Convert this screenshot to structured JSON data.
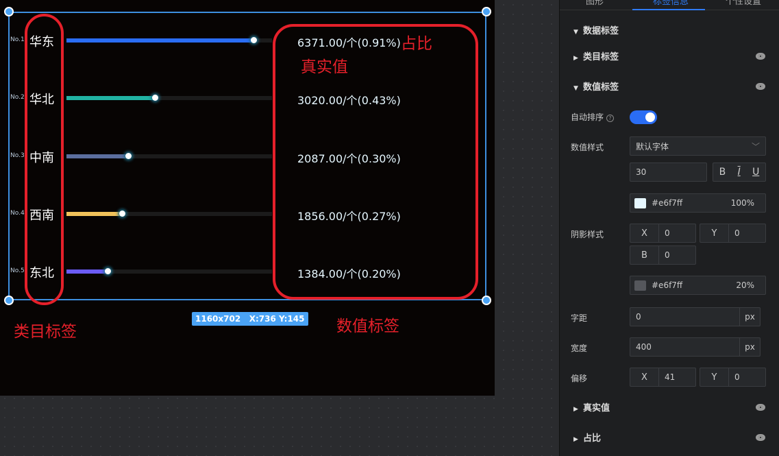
{
  "chart": {
    "rows": [
      {
        "rank": "No.1",
        "category": "华东",
        "value": "6371.00/个(0.91%)",
        "percent": 0.91,
        "color": "#2a6df4"
      },
      {
        "rank": "No.2",
        "category": "华北",
        "value": "3020.00/个(0.43%)",
        "percent": 0.43,
        "color": "#21b3a3"
      },
      {
        "rank": "No.3",
        "category": "中南",
        "value": "2087.00/个(0.30%)",
        "percent": 0.3,
        "color": "#5b6e9e"
      },
      {
        "rank": "No.4",
        "category": "西南",
        "value": "1856.00/个(0.27%)",
        "percent": 0.27,
        "color": "#f1c25a"
      },
      {
        "rank": "No.5",
        "category": "东北",
        "value": "1384.00/个(0.20%)",
        "percent": 0.2,
        "color": "#6b5cf5"
      }
    ]
  },
  "annotations": {
    "ratio": "占比",
    "real_value": "真实值",
    "category_label": "类目标签",
    "value_label": "数值标签"
  },
  "badge": "1160x702   X:736 Y:145",
  "panel": {
    "tabs": [
      "图形",
      "标签信息",
      "个性设置"
    ],
    "sections": {
      "data_label": "数据标签",
      "category_label": "类目标签",
      "value_label": "数值标签",
      "real_value": "真实值",
      "ratio": "占比"
    },
    "auto_sort": {
      "label": "自动排序",
      "on": true
    },
    "value_style": {
      "label": "数值样式",
      "font": "默认字体",
      "size": "30",
      "bold": "B",
      "italic": "I",
      "underline": "U",
      "color": "#e6f7ff",
      "opacity": "100%"
    },
    "shadow": {
      "label": "阴影样式",
      "x_label": "X",
      "x": "0",
      "y_label": "Y",
      "y": "0",
      "b_label": "B",
      "b": "0",
      "color": "#e6f7ff",
      "opacity": "20%"
    },
    "spacing": {
      "label": "字距",
      "value": "0",
      "unit": "px"
    },
    "width": {
      "label": "宽度",
      "value": "400",
      "unit": "px"
    },
    "offset": {
      "label": "偏移",
      "x_label": "X",
      "x": "41",
      "y_label": "Y",
      "y": "0"
    }
  }
}
